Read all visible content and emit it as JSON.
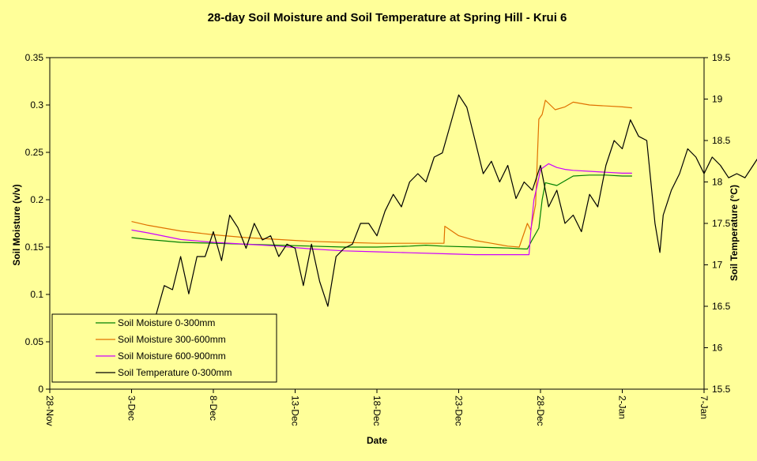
{
  "chart_data": {
    "type": "line",
    "title": "28-day Soil Moisture and Soil Temperature at Spring Hill - Krui 6",
    "xlabel": "Date",
    "ylabel": "Soil Moisture  (v/v)",
    "ylabel_right": "Soil Temperature (°C)",
    "x_ticks": [
      "28-Nov",
      "3-Dec",
      "8-Dec",
      "13-Dec",
      "18-Dec",
      "23-Dec",
      "28-Dec",
      "2-Jan",
      "7-Jan"
    ],
    "ylim": [
      0,
      0.35
    ],
    "y_ticks": [
      "0",
      "0.05",
      "0.1",
      "0.15",
      "0.2",
      "0.25",
      "0.3",
      "0.35"
    ],
    "ylim_right": [
      15.5,
      19.5
    ],
    "y_ticks_right": [
      "15.5",
      "16",
      "16.5",
      "17",
      "17.5",
      "18",
      "18.5",
      "19",
      "19.5"
    ],
    "legend_position": "bottom-left",
    "series": [
      {
        "name": "Soil Moisture 0-300mm",
        "axis": "left",
        "color": "#008000",
        "points": [
          [
            5.0,
            0.16
          ],
          [
            6.0,
            0.158
          ],
          [
            8.0,
            0.155
          ],
          [
            10.0,
            0.154
          ],
          [
            12.0,
            0.153
          ],
          [
            14.0,
            0.152
          ],
          [
            16.0,
            0.151
          ],
          [
            18.0,
            0.15
          ],
          [
            20.0,
            0.15
          ],
          [
            22.0,
            0.151
          ],
          [
            23.0,
            0.152
          ],
          [
            24.0,
            0.151
          ],
          [
            26.0,
            0.15
          ],
          [
            28.0,
            0.149
          ],
          [
            29.0,
            0.148
          ],
          [
            29.2,
            0.148
          ],
          [
            29.5,
            0.158
          ],
          [
            29.9,
            0.17
          ],
          [
            30.1,
            0.2
          ],
          [
            30.3,
            0.218
          ],
          [
            31.0,
            0.215
          ],
          [
            31.5,
            0.22
          ],
          [
            32.0,
            0.225
          ],
          [
            33.0,
            0.226
          ],
          [
            34.0,
            0.226
          ],
          [
            35.0,
            0.225
          ],
          [
            35.6,
            0.225
          ]
        ]
      },
      {
        "name": "Soil Moisture 300-600mm",
        "axis": "left",
        "color": "#E07000",
        "points": [
          [
            5.0,
            0.177
          ],
          [
            6.0,
            0.173
          ],
          [
            8.0,
            0.167
          ],
          [
            10.0,
            0.163
          ],
          [
            12.0,
            0.16
          ],
          [
            14.0,
            0.158
          ],
          [
            16.0,
            0.156
          ],
          [
            18.0,
            0.155
          ],
          [
            20.0,
            0.154
          ],
          [
            24.1,
            0.154
          ],
          [
            24.15,
            0.172
          ],
          [
            25.0,
            0.162
          ],
          [
            26.0,
            0.157
          ],
          [
            27.0,
            0.154
          ],
          [
            28.0,
            0.151
          ],
          [
            28.7,
            0.15
          ],
          [
            29.0,
            0.165
          ],
          [
            29.2,
            0.175
          ],
          [
            29.4,
            0.168
          ],
          [
            29.7,
            0.195
          ],
          [
            29.9,
            0.285
          ],
          [
            30.1,
            0.29
          ],
          [
            30.3,
            0.305
          ],
          [
            30.6,
            0.3
          ],
          [
            30.9,
            0.295
          ],
          [
            31.5,
            0.298
          ],
          [
            32.0,
            0.303
          ],
          [
            33.0,
            0.3
          ],
          [
            34.0,
            0.299
          ],
          [
            35.0,
            0.298
          ],
          [
            35.6,
            0.297
          ]
        ]
      },
      {
        "name": "Soil Moisture 600-900mm",
        "axis": "left",
        "color": "#CC00FF",
        "points": [
          [
            5.0,
            0.168
          ],
          [
            6.0,
            0.165
          ],
          [
            8.0,
            0.158
          ],
          [
            10.0,
            0.155
          ],
          [
            12.0,
            0.153
          ],
          [
            14.0,
            0.151
          ],
          [
            16.0,
            0.148
          ],
          [
            18.0,
            0.146
          ],
          [
            20.0,
            0.145
          ],
          [
            22.0,
            0.144
          ],
          [
            24.0,
            0.143
          ],
          [
            26.0,
            0.142
          ],
          [
            28.0,
            0.142
          ],
          [
            29.0,
            0.142
          ],
          [
            29.3,
            0.142
          ],
          [
            29.4,
            0.165
          ],
          [
            29.6,
            0.2
          ],
          [
            29.8,
            0.215
          ],
          [
            30.0,
            0.232
          ],
          [
            30.5,
            0.238
          ],
          [
            31.0,
            0.234
          ],
          [
            31.5,
            0.232
          ],
          [
            32.0,
            0.231
          ],
          [
            33.0,
            0.23
          ],
          [
            34.0,
            0.229
          ],
          [
            35.0,
            0.228
          ],
          [
            35.6,
            0.228
          ]
        ]
      },
      {
        "name": "Soil Temperature 0-300mm",
        "axis": "right",
        "color": "#000000",
        "points": [
          [
            6.5,
            16.4
          ],
          [
            7.0,
            16.75
          ],
          [
            7.5,
            16.7
          ],
          [
            8.0,
            17.1
          ],
          [
            8.5,
            16.65
          ],
          [
            9.0,
            17.1
          ],
          [
            9.5,
            17.1
          ],
          [
            10.0,
            17.4
          ],
          [
            10.5,
            17.05
          ],
          [
            11.0,
            17.6
          ],
          [
            11.5,
            17.45
          ],
          [
            12.0,
            17.2
          ],
          [
            12.5,
            17.5
          ],
          [
            13.0,
            17.3
          ],
          [
            13.5,
            17.35
          ],
          [
            14.0,
            17.1
          ],
          [
            14.5,
            17.25
          ],
          [
            15.0,
            17.2
          ],
          [
            15.5,
            16.75
          ],
          [
            16.0,
            17.25
          ],
          [
            16.5,
            16.8
          ],
          [
            17.0,
            16.5
          ],
          [
            17.5,
            17.1
          ],
          [
            18.0,
            17.2
          ],
          [
            18.5,
            17.25
          ],
          [
            19.0,
            17.5
          ],
          [
            19.5,
            17.5
          ],
          [
            20.0,
            17.35
          ],
          [
            20.5,
            17.65
          ],
          [
            21.0,
            17.85
          ],
          [
            21.5,
            17.7
          ],
          [
            22.0,
            18.0
          ],
          [
            22.5,
            18.1
          ],
          [
            23.0,
            18.0
          ],
          [
            23.5,
            18.3
          ],
          [
            24.0,
            18.35
          ],
          [
            24.5,
            18.7
          ],
          [
            25.0,
            19.05
          ],
          [
            25.5,
            18.9
          ],
          [
            26.0,
            18.5
          ],
          [
            26.5,
            18.1
          ],
          [
            27.0,
            18.25
          ],
          [
            27.5,
            18.0
          ],
          [
            28.0,
            18.2
          ],
          [
            28.5,
            17.8
          ],
          [
            29.0,
            18.0
          ],
          [
            29.5,
            17.9
          ],
          [
            30.0,
            18.2
          ],
          [
            30.5,
            17.7
          ],
          [
            31.0,
            17.9
          ],
          [
            31.5,
            17.5
          ],
          [
            32.0,
            17.6
          ],
          [
            32.5,
            17.4
          ],
          [
            33.0,
            17.85
          ],
          [
            33.5,
            17.7
          ],
          [
            34.0,
            18.2
          ],
          [
            34.5,
            18.5
          ],
          [
            35.0,
            18.4
          ],
          [
            35.5,
            18.75
          ],
          [
            36.0,
            18.55
          ],
          [
            36.5,
            18.5
          ],
          [
            37.0,
            17.5
          ],
          [
            37.3,
            17.15
          ],
          [
            37.5,
            17.6
          ],
          [
            38.0,
            17.9
          ],
          [
            38.5,
            18.1
          ],
          [
            39.0,
            18.4
          ],
          [
            39.5,
            18.3
          ],
          [
            40.0,
            18.1
          ],
          [
            40.5,
            18.3
          ],
          [
            41.0,
            18.2
          ],
          [
            41.5,
            18.05
          ],
          [
            42.0,
            18.1
          ],
          [
            42.5,
            18.05
          ],
          [
            43.0,
            18.2
          ],
          [
            43.5,
            18.35
          ]
        ]
      }
    ]
  }
}
